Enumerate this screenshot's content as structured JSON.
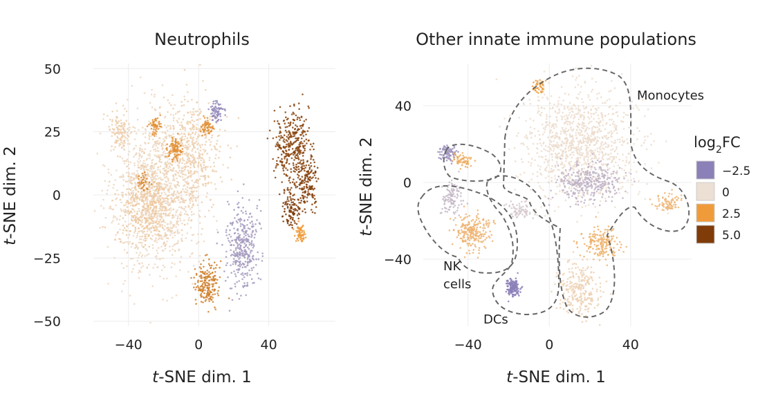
{
  "chart_data": [
    {
      "type": "scatter",
      "title": "Neutrophils",
      "xlabel_italic": "t",
      "xlabel_rest": "-SNE dim. 1",
      "ylabel_italic": "t",
      "ylabel_rest": "-SNE dim. 2",
      "xlim": [
        -60,
        78
      ],
      "ylim": [
        -52,
        52
      ],
      "x_ticks": [
        {
          "value": -40,
          "label": "−40"
        },
        {
          "value": 0,
          "label": "0"
        },
        {
          "value": 40,
          "label": "40"
        }
      ],
      "y_ticks": [
        {
          "value": 50,
          "label": "50"
        },
        {
          "value": 25,
          "label": "25"
        },
        {
          "value": 0,
          "label": "0"
        },
        {
          "value": -25,
          "label": "−25"
        },
        {
          "value": -50,
          "label": "−50"
        }
      ],
      "grid": true,
      "clusters": [
        {
          "center": [
            -25,
            0
          ],
          "spread": [
            22,
            28
          ],
          "log2FC": 0.3,
          "n": 1100
        },
        {
          "center": [
            -5,
            15
          ],
          "spread": [
            16,
            20
          ],
          "log2FC": 0.6,
          "n": 550
        },
        {
          "center": [
            -45,
            25
          ],
          "spread": [
            6,
            8
          ],
          "log2FC": 0.6,
          "n": 120
        },
        {
          "center": [
            -30,
            -5
          ],
          "spread": [
            14,
            14
          ],
          "log2FC": 0.9,
          "n": 350
        },
        {
          "center": [
            10,
            33
          ],
          "spread": [
            4,
            4
          ],
          "log2FC": -2.3,
          "n": 70
        },
        {
          "center": [
            -13,
            18
          ],
          "spread": [
            4,
            4
          ],
          "log2FC": 2.8,
          "n": 90
        },
        {
          "center": [
            5,
            27
          ],
          "spread": [
            3,
            3
          ],
          "log2FC": 2.8,
          "n": 60
        },
        {
          "center": [
            -25,
            27
          ],
          "spread": [
            3,
            3
          ],
          "log2FC": 2.8,
          "n": 50
        },
        {
          "center": [
            -32,
            5
          ],
          "spread": [
            3,
            3
          ],
          "log2FC": 3.0,
          "n": 35
        },
        {
          "center": [
            25,
            -20
          ],
          "spread": [
            8,
            16
          ],
          "log2FC": -1.8,
          "n": 360
        },
        {
          "center": [
            5,
            -35
          ],
          "spread": [
            6,
            8
          ],
          "log2FC": 3.2,
          "n": 190
        },
        {
          "center": [
            53,
            20
          ],
          "spread": [
            9,
            12
          ],
          "log2FC": 4.8,
          "n": 320
        },
        {
          "center": [
            62,
            5
          ],
          "spread": [
            6,
            9
          ],
          "log2FC": 4.9,
          "n": 170
        },
        {
          "center": [
            53,
            -5
          ],
          "spread": [
            5,
            7
          ],
          "log2FC": 5.0,
          "n": 110
        },
        {
          "center": [
            58,
            -15
          ],
          "spread": [
            2.5,
            3
          ],
          "log2FC": 2.5,
          "n": 70
        }
      ]
    },
    {
      "type": "scatter",
      "title": "Other innate immune populations",
      "xlabel_italic": "t",
      "xlabel_rest": "-SNE dim. 1",
      "ylabel_italic": "t",
      "ylabel_rest": "-SNE dim. 2",
      "xlim": [
        -62,
        70
      ],
      "ylim": [
        -75,
        62
      ],
      "x_ticks": [
        {
          "value": -40,
          "label": "−40"
        },
        {
          "value": 0,
          "label": "0"
        },
        {
          "value": 40,
          "label": "40"
        }
      ],
      "y_ticks": [
        {
          "value": 40,
          "label": "40"
        },
        {
          "value": 0,
          "label": "0"
        },
        {
          "value": -40,
          "label": "−40"
        }
      ],
      "grid": true,
      "annotations": [
        "Monocytes",
        "NK",
        "cells",
        "DCs"
      ],
      "outline_style": "dashed",
      "clusters": [
        {
          "center": [
            15,
            20
          ],
          "spread": [
            25,
            25
          ],
          "log2FC": 0.1,
          "n": 1100
        },
        {
          "center": [
            20,
            0
          ],
          "spread": [
            14,
            9
          ],
          "log2FC": -1.2,
          "n": 320
        },
        {
          "center": [
            -5,
            50
          ],
          "spread": [
            3,
            4
          ],
          "log2FC": 2.4,
          "n": 40
        },
        {
          "center": [
            -50,
            15
          ],
          "spread": [
            4,
            4
          ],
          "log2FC": -2.0,
          "n": 90
        },
        {
          "center": [
            -43,
            12
          ],
          "spread": [
            4,
            3
          ],
          "log2FC": 1.9,
          "n": 60
        },
        {
          "center": [
            -48,
            -8
          ],
          "spread": [
            5,
            8
          ],
          "log2FC": -1.0,
          "n": 110
        },
        {
          "center": [
            -38,
            -26
          ],
          "spread": [
            8,
            9
          ],
          "log2FC": 1.6,
          "n": 220
        },
        {
          "center": [
            -18,
            -55
          ],
          "spread": [
            3,
            4
          ],
          "log2FC": -3.0,
          "n": 160
        },
        {
          "center": [
            -15,
            -15
          ],
          "spread": [
            6,
            4
          ],
          "log2FC": -0.6,
          "n": 70
        },
        {
          "center": [
            25,
            -32
          ],
          "spread": [
            8,
            8
          ],
          "log2FC": 1.7,
          "n": 170
        },
        {
          "center": [
            15,
            -56
          ],
          "spread": [
            10,
            12
          ],
          "log2FC": 0.5,
          "n": 260
        },
        {
          "center": [
            58,
            -11
          ],
          "spread": [
            6,
            4
          ],
          "log2FC": 1.5,
          "n": 80
        }
      ]
    }
  ],
  "legend": {
    "title_base": "log",
    "title_sub": "2",
    "title_rest": "FC",
    "placement": "right",
    "entries": [
      {
        "label": "−2.5",
        "value": -2.5,
        "color": "#8c80b8"
      },
      {
        "label": "0",
        "value": 0,
        "color": "#ecdfd3"
      },
      {
        "label": "2.5",
        "value": 2.5,
        "color": "#f09b3a"
      },
      {
        "label": "5.0",
        "value": 5.0,
        "color": "#7f3b08"
      }
    ]
  }
}
